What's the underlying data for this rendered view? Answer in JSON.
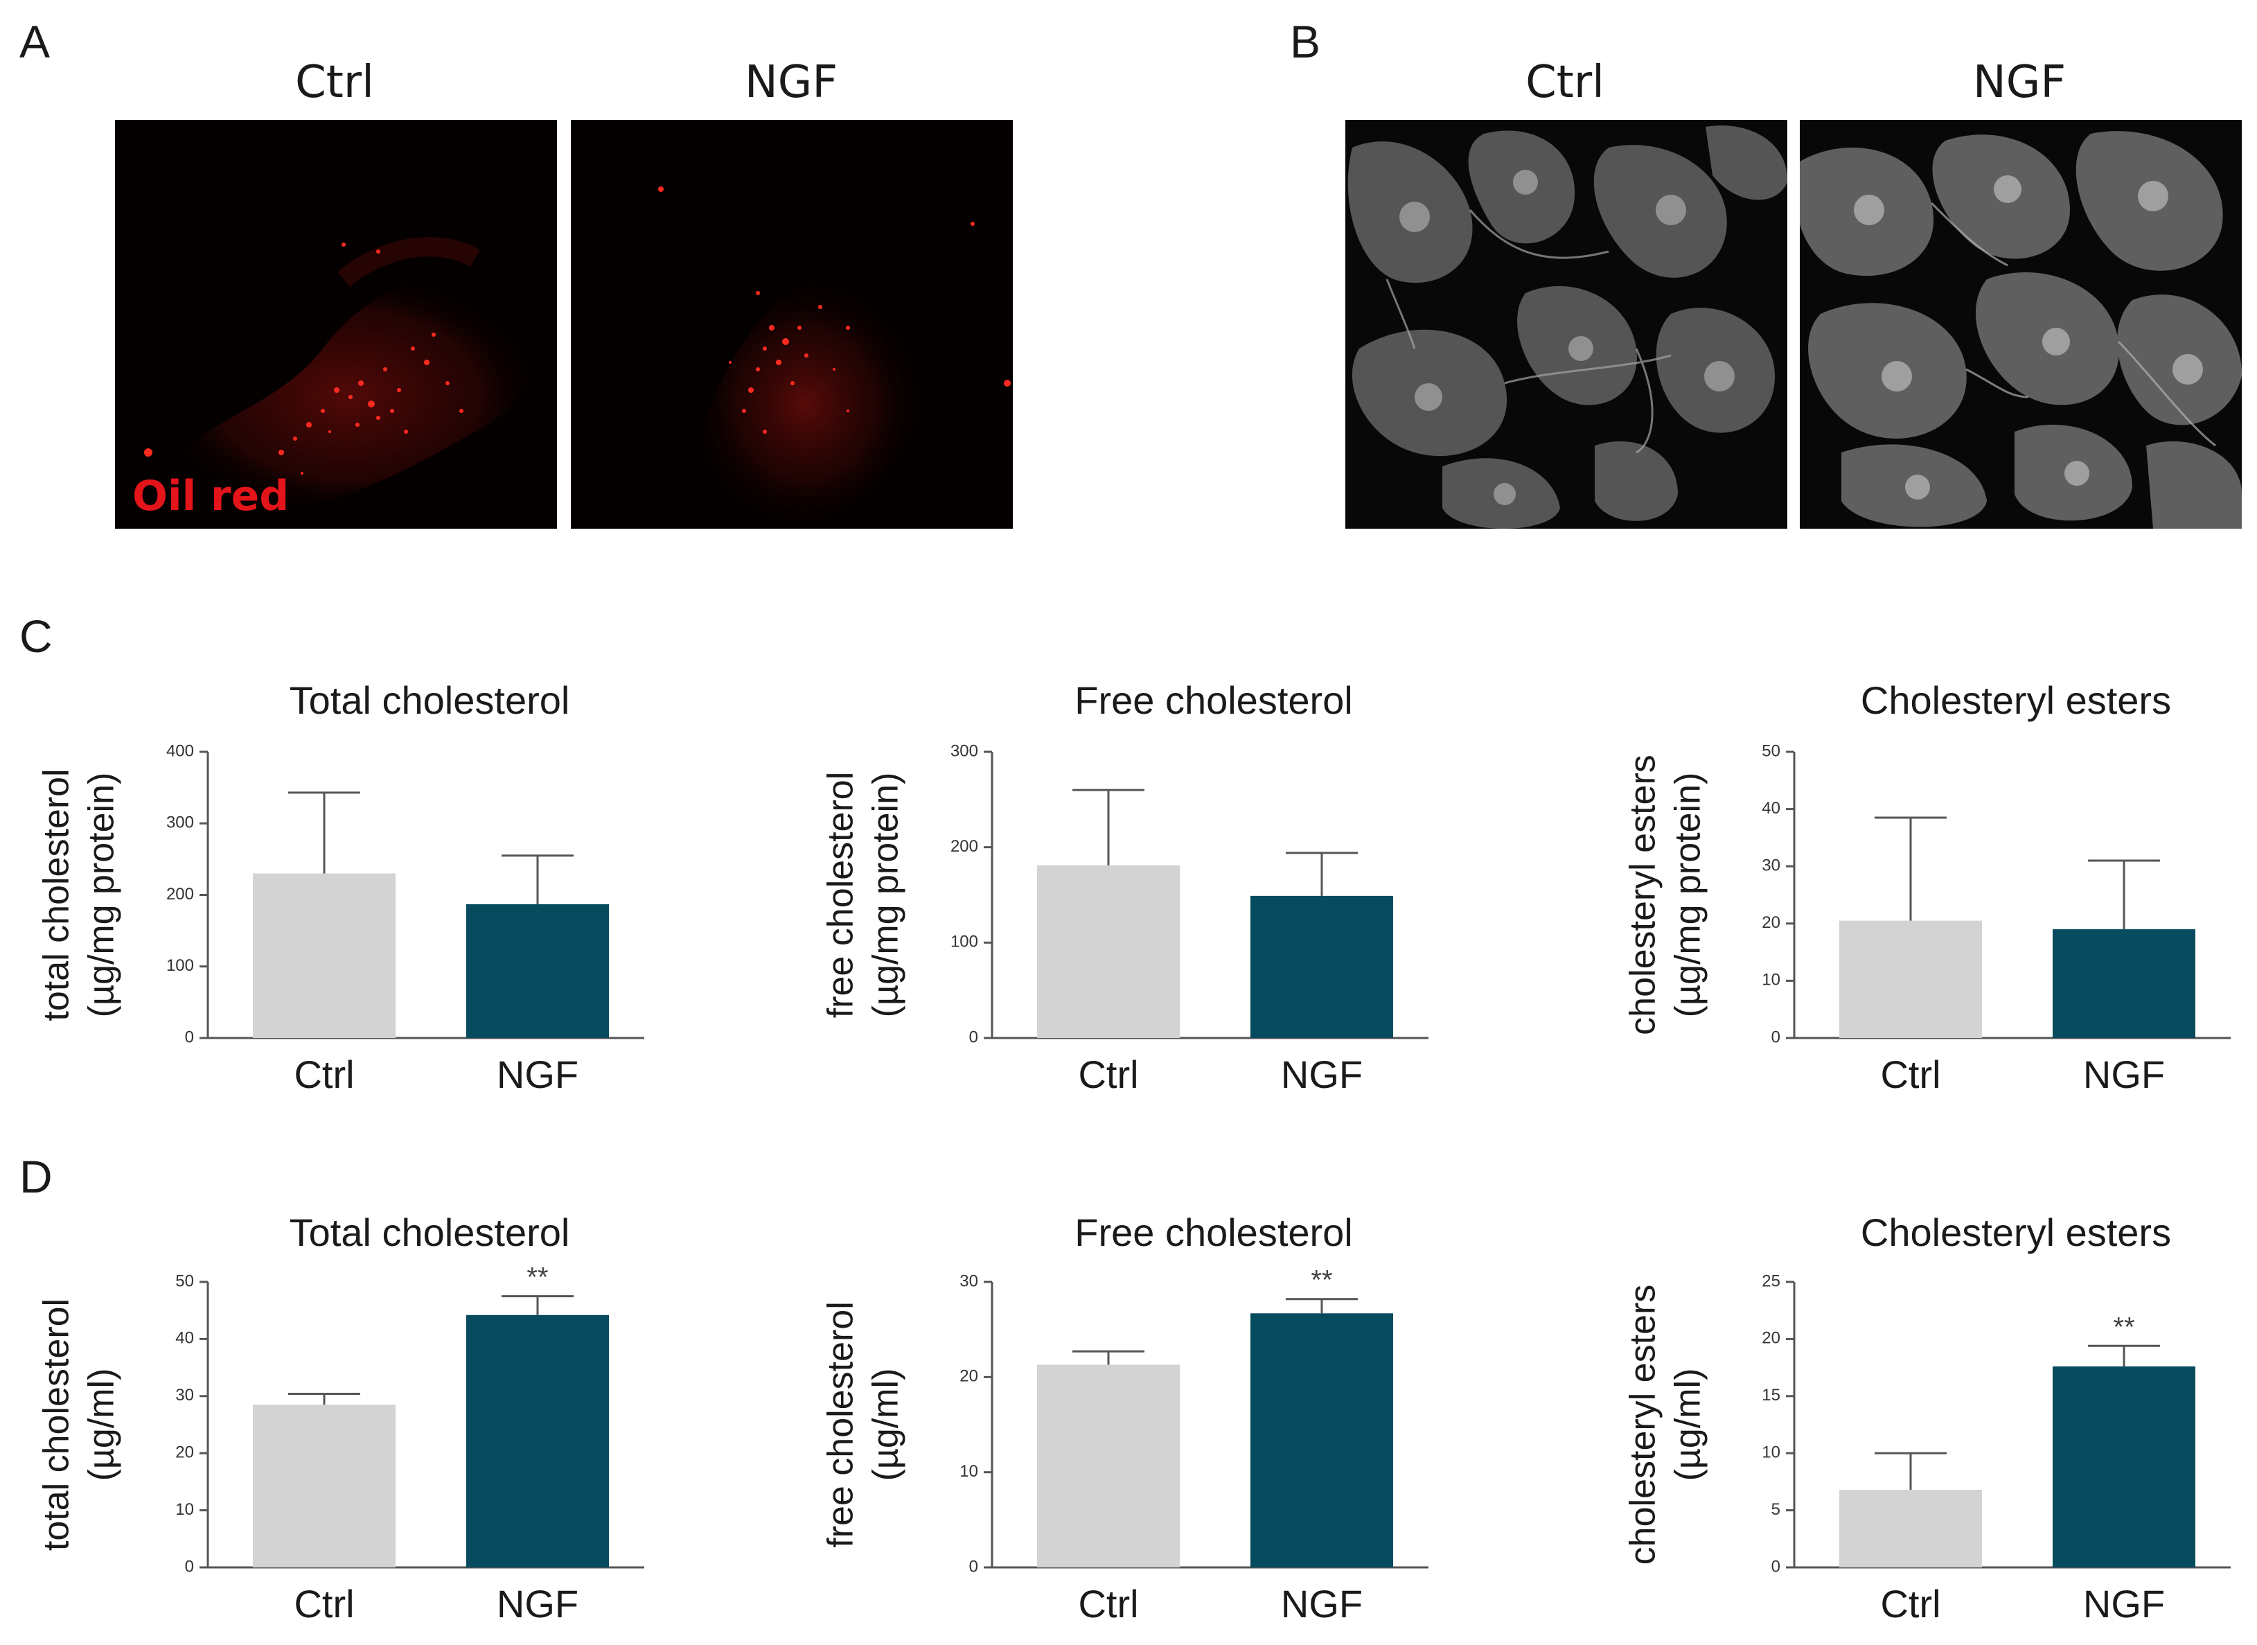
{
  "panels": {
    "A": {
      "letter": "A",
      "labels": [
        "Ctrl",
        "NGF"
      ],
      "stain_label": "Oil red"
    },
    "B": {
      "letter": "B",
      "labels": [
        "Ctrl",
        "NGF"
      ]
    },
    "C": {
      "letter": "C"
    },
    "D": {
      "letter": "D"
    }
  },
  "colors": {
    "ctrl": "#d3d3d3",
    "ngf": "#064b5e",
    "oil_red": "#e3141a",
    "axis": "#555555"
  },
  "chart_data": [
    {
      "panel": "C",
      "type": "bar",
      "title": "Total cholesterol",
      "ylabel": [
        "total cholesterol",
        "(µg/mg protein)"
      ],
      "categories": [
        "Ctrl",
        "NGF"
      ],
      "values": [
        230,
        187
      ],
      "errors": [
        113,
        68
      ],
      "ylim": [
        0,
        400
      ],
      "yticks": [
        0,
        100,
        200,
        300,
        400
      ],
      "significance": [
        "",
        ""
      ]
    },
    {
      "panel": "C",
      "type": "bar",
      "title": "Free cholesterol",
      "ylabel": [
        "free cholesterol",
        "(µg/mg protein)"
      ],
      "categories": [
        "Ctrl",
        "NGF"
      ],
      "values": [
        181,
        149
      ],
      "errors": [
        79,
        45
      ],
      "ylim": [
        0,
        300
      ],
      "yticks": [
        0,
        100,
        200,
        300
      ],
      "significance": [
        "",
        ""
      ]
    },
    {
      "panel": "C",
      "type": "bar",
      "title": "Cholesteryl esters",
      "ylabel": [
        "cholesteryl esters",
        "(µg/mg protein)"
      ],
      "categories": [
        "Ctrl",
        "NGF"
      ],
      "values": [
        20.5,
        19
      ],
      "errors": [
        18,
        12
      ],
      "ylim": [
        0,
        50
      ],
      "yticks": [
        0,
        10,
        20,
        30,
        40,
        50
      ],
      "significance": [
        "",
        ""
      ]
    },
    {
      "panel": "D",
      "type": "bar",
      "title": "Total cholesterol",
      "ylabel": [
        "total cholesterol",
        "(µg/ml)"
      ],
      "categories": [
        "Ctrl",
        "NGF"
      ],
      "values": [
        28.5,
        44.2
      ],
      "errors": [
        1.9,
        3.3
      ],
      "ylim": [
        0,
        50
      ],
      "yticks": [
        0,
        10,
        20,
        30,
        40,
        50
      ],
      "significance": [
        "",
        "**"
      ]
    },
    {
      "panel": "D",
      "type": "bar",
      "title": "Free cholesterol",
      "ylabel": [
        "free cholesterol",
        "(µg/ml)"
      ],
      "categories": [
        "Ctrl",
        "NGF"
      ],
      "values": [
        21.3,
        26.7
      ],
      "errors": [
        1.4,
        1.5
      ],
      "ylim": [
        0,
        30
      ],
      "yticks": [
        0,
        10,
        20,
        30
      ],
      "significance": [
        "",
        "**"
      ]
    },
    {
      "panel": "D",
      "type": "bar",
      "title": "Cholesteryl esters",
      "ylabel": [
        "cholesteryl esters",
        "(µg/ml)"
      ],
      "categories": [
        "Ctrl",
        "NGF"
      ],
      "values": [
        6.8,
        17.6
      ],
      "errors": [
        3.2,
        1.8
      ],
      "ylim": [
        0,
        25
      ],
      "yticks": [
        0,
        5,
        10,
        15,
        20,
        25
      ],
      "significance": [
        "",
        "**"
      ]
    }
  ]
}
